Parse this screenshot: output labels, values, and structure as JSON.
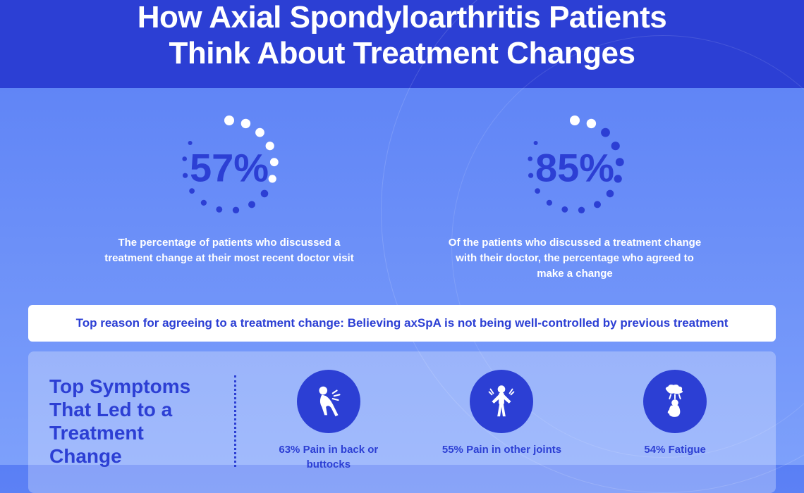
{
  "colors": {
    "primary": "#2c3fd4",
    "white": "#ffffff",
    "bg_gradient_top": "#5a7ff5",
    "bg_gradient_bottom": "#7da0fb",
    "panel_bg": "rgba(255,255,255,0.28)"
  },
  "header": {
    "title_line1": "How Axial Spondyloarthritis Patients",
    "title_line2": "Think About Treatment Changes"
  },
  "stats": [
    {
      "percent": 57,
      "percent_label": "57%",
      "description": "The percentage of patients who discussed a treatment change at their most recent doctor visit",
      "gauge": {
        "dot_count": 15,
        "start_angle_deg": -90,
        "dot_radius_max": 7,
        "dot_radius_min": 3,
        "filled_color": "#ffffff",
        "empty_color": "#2c3fd4",
        "track_radius": 64
      }
    },
    {
      "percent": 85,
      "percent_label": "85%",
      "description": "Of the patients who discussed a treatment change with their doctor, the percentage who agreed to make a change",
      "gauge": {
        "dot_count": 15,
        "start_angle_deg": -90,
        "dot_radius_max": 7,
        "dot_radius_min": 3,
        "filled_color": "#ffffff",
        "empty_color": "#2c3fd4",
        "track_radius": 64
      }
    }
  ],
  "callout": {
    "text": "Top reason for agreeing to a treatment change: Believing axSpA is not being well-controlled by previous treatment"
  },
  "symptoms": {
    "title": "Top Symptoms That Led to a Treatment Change",
    "items": [
      {
        "percent": 63,
        "label": "63% Pain in back or buttocks",
        "icon": "back-pain-icon"
      },
      {
        "percent": 55,
        "label": "55% Pain in other joints",
        "icon": "joint-pain-icon"
      },
      {
        "percent": 54,
        "label": "54% Fatigue",
        "icon": "fatigue-icon"
      }
    ]
  },
  "typography": {
    "title_fontsize": 44,
    "gauge_label_fontsize": 56,
    "stat_desc_fontsize": 15,
    "callout_fontsize": 17,
    "symptoms_title_fontsize": 28,
    "symptom_label_fontsize": 15
  }
}
